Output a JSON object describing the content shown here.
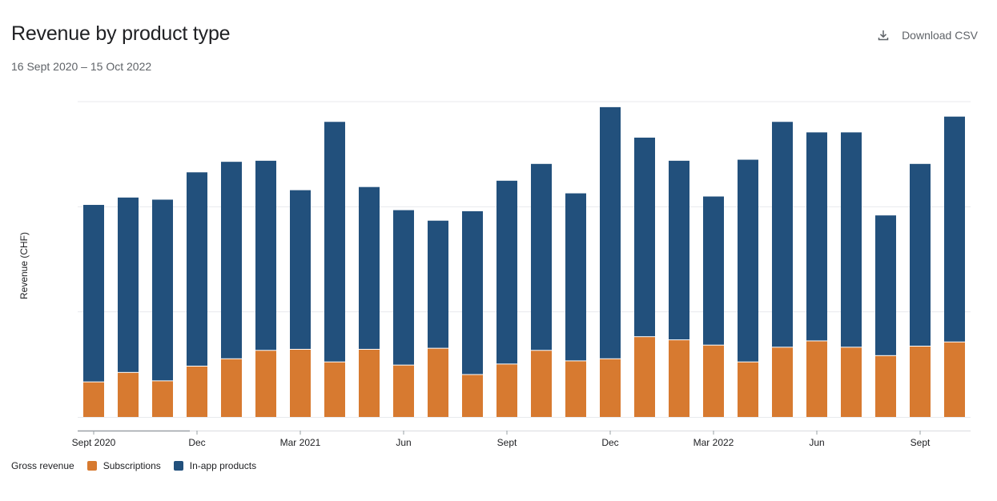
{
  "header": {
    "title": "Revenue by product type",
    "date_range": "16 Sept 2020 – 15 Oct 2022",
    "download_label": "Download CSV"
  },
  "legend": {
    "title": "Gross revenue",
    "items": [
      {
        "label": "Subscriptions",
        "color": "#d77a30"
      },
      {
        "label": "In-app products",
        "color": "#22507c"
      }
    ]
  },
  "chart_data": {
    "type": "bar",
    "stacked": true,
    "title": "Revenue by product type",
    "subtitle": "16 Sept 2020 – 15 Oct 2022",
    "ylabel": "Revenue (CHF)",
    "xlabel": "",
    "y_tick_labels_shown": false,
    "ylim": [
      0,
      3
    ],
    "gridlines": [
      1,
      2,
      3
    ],
    "grid": true,
    "legend_position": "bottom-left",
    "categories": [
      "Sept 2020",
      "Oct 2020",
      "Nov 2020",
      "Dec 2020",
      "Jan 2021",
      "Feb 2021",
      "Mar 2021",
      "Apr 2021",
      "May 2021",
      "Jun 2021",
      "Jul 2021",
      "Aug 2021",
      "Sept 2021",
      "Oct 2021",
      "Nov 2021",
      "Dec 2021",
      "Jan 2022",
      "Feb 2022",
      "Mar 2022",
      "Apr 2022",
      "May 2022",
      "Jun 2022",
      "Jul 2022",
      "Aug 2022",
      "Sept 2022",
      "Oct 2022"
    ],
    "x_tick_labels": [
      {
        "label": "Sept 2020",
        "index": 0
      },
      {
        "label": "Dec",
        "index": 3
      },
      {
        "label": "Mar 2021",
        "index": 6
      },
      {
        "label": "Jun",
        "index": 9
      },
      {
        "label": "Sept",
        "index": 12
      },
      {
        "label": "Dec",
        "index": 15
      },
      {
        "label": "Mar 2022",
        "index": 18
      },
      {
        "label": "Jun",
        "index": 21
      },
      {
        "label": "Sept",
        "index": 24
      }
    ],
    "series": [
      {
        "name": "Subscriptions",
        "color": "#d77a30",
        "values": [
          0.33,
          0.42,
          0.34,
          0.48,
          0.55,
          0.63,
          0.64,
          0.52,
          0.64,
          0.49,
          0.65,
          0.4,
          0.5,
          0.63,
          0.53,
          0.55,
          0.76,
          0.73,
          0.68,
          0.52,
          0.66,
          0.72,
          0.66,
          0.58,
          0.67,
          0.71
        ]
      },
      {
        "name": "In-app products",
        "color": "#22507c",
        "values": [
          1.68,
          1.66,
          1.72,
          1.84,
          1.87,
          1.8,
          1.51,
          2.28,
          1.54,
          1.47,
          1.21,
          1.55,
          1.74,
          1.77,
          1.59,
          2.39,
          1.89,
          1.7,
          1.41,
          1.92,
          2.14,
          1.98,
          2.04,
          1.33,
          1.73,
          2.14
        ]
      }
    ]
  }
}
